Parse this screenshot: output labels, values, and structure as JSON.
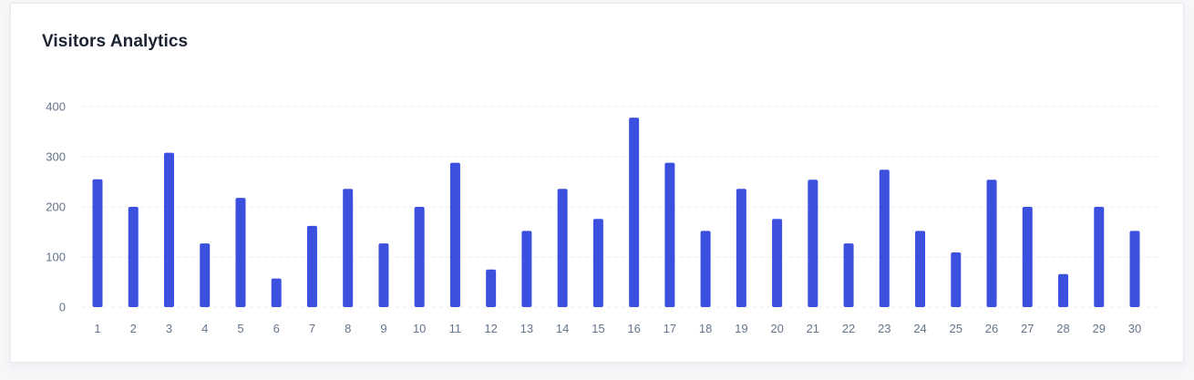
{
  "card": {
    "title": "Visitors Analytics"
  },
  "colors": {
    "bar": "#3c50e0",
    "grid": "#e9edf3",
    "tick_text": "#64748b",
    "title_text": "#1c2434"
  },
  "chart_data": {
    "type": "bar",
    "title": "Visitors Analytics",
    "xlabel": "",
    "ylabel": "",
    "ylim": [
      0,
      400
    ],
    "yticks": [
      0,
      100,
      200,
      300,
      400
    ],
    "grid": true,
    "legend": "none",
    "categories": [
      "1",
      "2",
      "3",
      "4",
      "5",
      "6",
      "7",
      "8",
      "9",
      "10",
      "11",
      "12",
      "13",
      "14",
      "15",
      "16",
      "17",
      "18",
      "19",
      "20",
      "21",
      "22",
      "23",
      "24",
      "25",
      "26",
      "27",
      "28",
      "29",
      "30"
    ],
    "values": [
      255,
      200,
      308,
      127,
      218,
      57,
      162,
      236,
      127,
      200,
      288,
      75,
      152,
      236,
      176,
      378,
      288,
      152,
      236,
      176,
      254,
      127,
      274,
      152,
      109,
      254,
      200,
      66,
      200,
      152
    ]
  }
}
